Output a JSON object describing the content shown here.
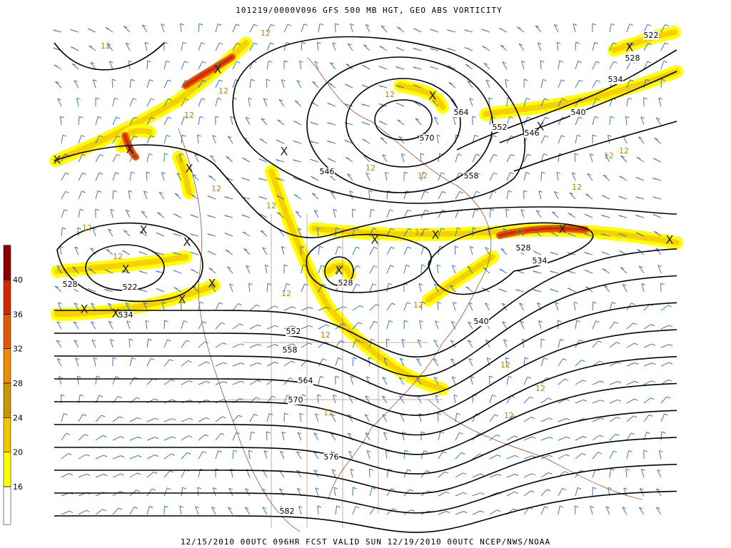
{
  "header": {
    "title": "101219/0000V096 GFS 500 MB HGT, GEO ABS VORTICITY"
  },
  "footer": {
    "text": "12/15/2010 00UTC 096HR FCST VALID SUN 12/19/2010 00UTC  NCEP/NWS/NOAA"
  },
  "colorbar": {
    "ticks": [
      16,
      20,
      24,
      28,
      32,
      36,
      40
    ],
    "colors": [
      "#ffffff",
      "#ffff00",
      "#f5c400",
      "#c89600",
      "#f08c00",
      "#e25a00",
      "#d22a00",
      "#8c0000"
    ]
  },
  "height_contour_labels": [
    522,
    528,
    534,
    540,
    546,
    552,
    564,
    570,
    558,
    546,
    528,
    528,
    534,
    540,
    528,
    522,
    534,
    552,
    558,
    564,
    570,
    576,
    582
  ],
  "vorticity_labels": [
    12,
    12,
    12,
    12,
    12,
    12,
    12,
    12,
    12,
    12,
    12,
    12,
    12,
    12,
    12,
    12,
    12,
    12,
    12,
    12,
    12,
    12,
    12
  ],
  "maxima": [
    "X",
    "X",
    "X",
    "X",
    "X",
    "X",
    "X",
    "X",
    "X",
    "X",
    "X",
    "X",
    "X",
    "X",
    "X",
    "X",
    "X",
    "X",
    "X",
    "X"
  ]
}
